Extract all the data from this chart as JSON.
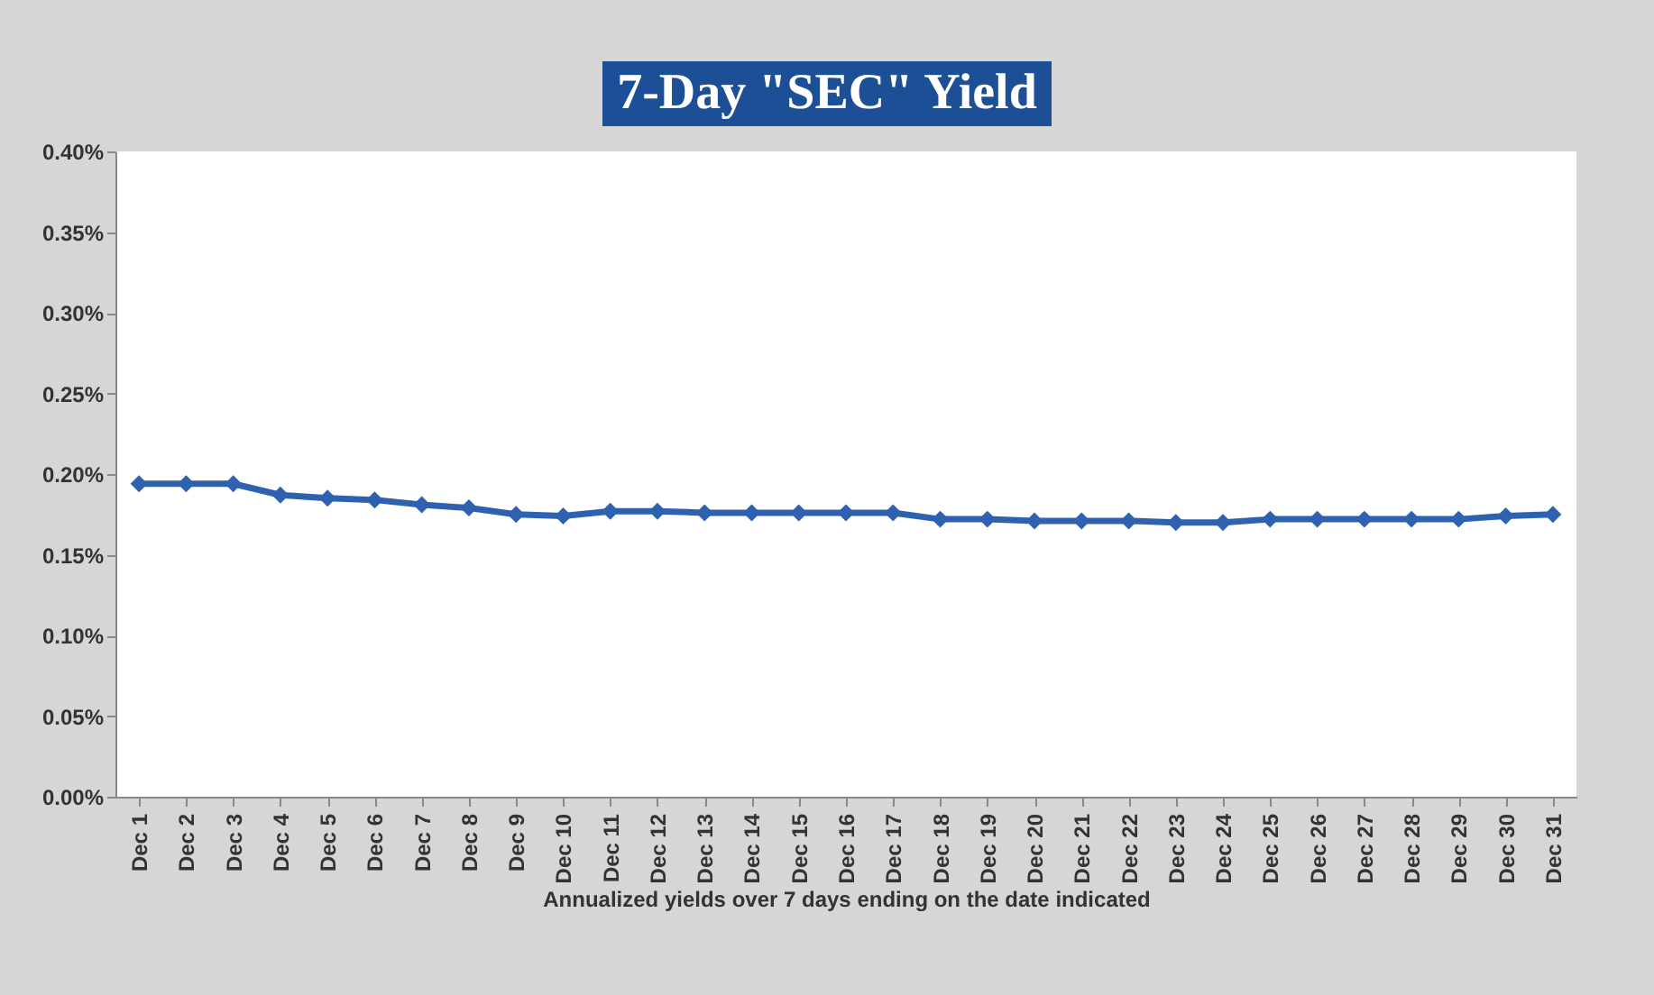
{
  "chart_data": {
    "type": "line",
    "title": "7-Day \"SEC\" Yield",
    "xlabel": "Annualized yields over 7 days ending on the date indicated",
    "categories": [
      "Dec 1",
      "Dec 2",
      "Dec 3",
      "Dec 4",
      "Dec 5",
      "Dec 6",
      "Dec 7",
      "Dec 8",
      "Dec 9",
      "Dec 10",
      "Dec 11",
      "Dec 12",
      "Dec 13",
      "Dec 14",
      "Dec 15",
      "Dec 16",
      "Dec 17",
      "Dec 18",
      "Dec 19",
      "Dec 20",
      "Dec 21",
      "Dec 22",
      "Dec 23",
      "Dec 24",
      "Dec 25",
      "Dec 26",
      "Dec 27",
      "Dec 28",
      "Dec 29",
      "Dec 30",
      "Dec 31"
    ],
    "series": [
      {
        "color": "#2e62b0",
        "values": [
          0.194,
          0.194,
          0.194,
          0.187,
          0.185,
          0.184,
          0.181,
          0.179,
          0.175,
          0.174,
          0.177,
          0.177,
          0.176,
          0.176,
          0.176,
          0.176,
          0.176,
          0.172,
          0.172,
          0.171,
          0.171,
          0.171,
          0.17,
          0.17,
          0.172,
          0.172,
          0.172,
          0.172,
          0.172,
          0.174,
          0.175
        ]
      }
    ],
    "ylim": [
      0,
      0.4
    ],
    "yticks": [
      {
        "value": 0,
        "label": "0.00%"
      },
      {
        "value": 0.05,
        "label": "0.05%"
      },
      {
        "value": 0.1,
        "label": "0.10%"
      },
      {
        "value": 0.15,
        "label": "0.15%"
      },
      {
        "value": 0.2,
        "label": "0.20%"
      },
      {
        "value": 0.25,
        "label": "0.25%"
      },
      {
        "value": 0.3,
        "label": "0.30%"
      },
      {
        "value": 0.35,
        "label": "0.35%"
      },
      {
        "value": 0.4,
        "label": "0.40%"
      }
    ],
    "grid": false,
    "marker": "diamond",
    "line_style": "solid"
  }
}
